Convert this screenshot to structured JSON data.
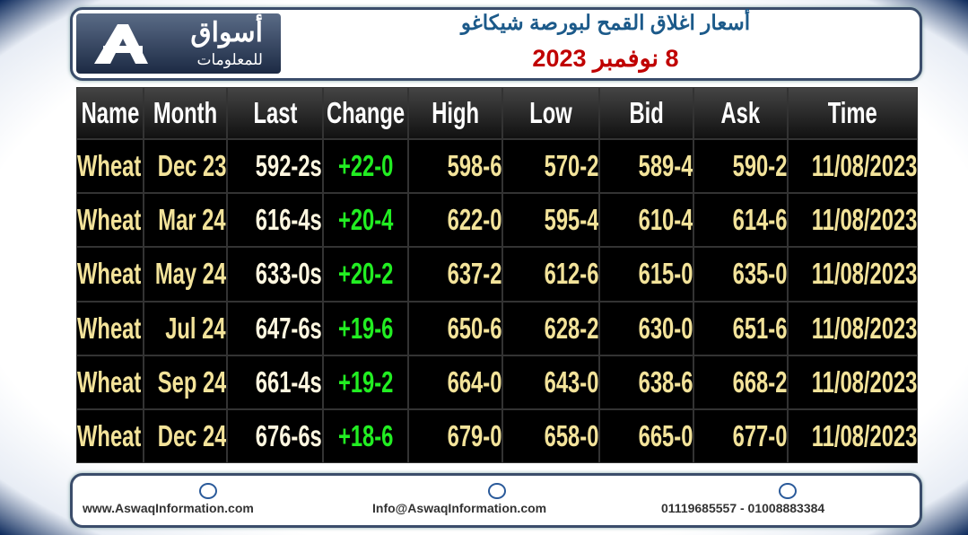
{
  "header": {
    "logo": {
      "name": "أسواق",
      "subtitle": "للمعلومات"
    },
    "title": "أسعار اغلاق القمح لبورصة شيكاغو",
    "date": "8 نوفمبر 2023"
  },
  "table": {
    "columns": [
      "Name",
      "Month",
      "Last",
      "Change",
      "High",
      "Low",
      "Bid",
      "Ask",
      "Time"
    ],
    "rows": [
      [
        "Wheat",
        "Dec 23",
        "592-2s",
        "+22-0",
        "598-6",
        "570-2",
        "589-4",
        "590-2",
        "11/08/2023"
      ],
      [
        "Wheat",
        "Mar 24",
        "616-4s",
        "+20-4",
        "622-0",
        "595-4",
        "610-4",
        "614-6",
        "11/08/2023"
      ],
      [
        "Wheat",
        "May 24",
        "633-0s",
        "+20-2",
        "637-2",
        "612-6",
        "615-0",
        "635-0",
        "11/08/2023"
      ],
      [
        "Wheat",
        "Jul 24",
        "647-6s",
        "+19-6",
        "650-6",
        "628-2",
        "630-0",
        "651-6",
        "11/08/2023"
      ],
      [
        "Wheat",
        "Sep 24",
        "661-4s",
        "+19-2",
        "664-0",
        "643-0",
        "638-6",
        "668-2",
        "11/08/2023"
      ],
      [
        "Wheat",
        "Dec 24",
        "676-6s",
        "+18-6",
        "679-0",
        "658-0",
        "665-0",
        "677-0",
        "11/08/2023"
      ]
    ]
  },
  "footer": {
    "website": "www.AswaqInformation.com",
    "email": "Info@AswaqInformation.com",
    "phone": "01119685557 - 01008883384"
  }
}
